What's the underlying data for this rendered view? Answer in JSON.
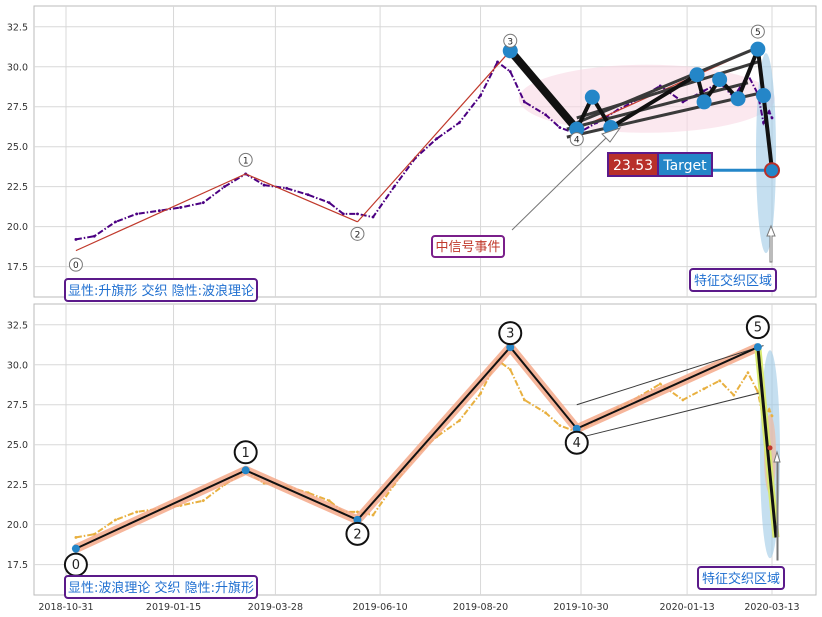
{
  "chart_data": [
    {
      "type": "line",
      "panel": "top",
      "ylim": [
        15.6,
        33.8
      ],
      "yticks": [
        "17.5",
        "20.0",
        "22.5",
        "25.0",
        "27.5",
        "30.0",
        "32.5"
      ],
      "x_dates": [
        "2018-10-31",
        "2019-01-15",
        "2019-03-28",
        "2019-06-10",
        "2019-08-20",
        "2019-10-30",
        "2020-01-13",
        "2020-03-13"
      ],
      "series": [
        {
          "style": "dash-dot",
          "color": "#4b0082",
          "points": [
            [
              "2018-11-07",
              19.2
            ],
            [
              "2018-11-20",
              19.4
            ],
            [
              "2018-12-05",
              20.3
            ],
            [
              "2018-12-20",
              20.8
            ],
            [
              "2019-01-05",
              21.0
            ],
            [
              "2019-01-20",
              21.2
            ],
            [
              "2019-02-05",
              21.5
            ],
            [
              "2019-02-20",
              22.5
            ],
            [
              "2019-03-07",
              23.3
            ],
            [
              "2019-03-20",
              22.6
            ],
            [
              "2019-04-05",
              22.4
            ],
            [
              "2019-04-20",
              22.0
            ],
            [
              "2019-05-05",
              21.5
            ],
            [
              "2019-05-15",
              20.8
            ],
            [
              "2019-05-25",
              20.8
            ],
            [
              "2019-06-05",
              20.6
            ],
            [
              "2019-06-20",
              22.5
            ],
            [
              "2019-07-05",
              24.3
            ],
            [
              "2019-07-20",
              25.5
            ],
            [
              "2019-08-05",
              26.5
            ],
            [
              "2019-08-20",
              28.2
            ],
            [
              "2019-09-01",
              30.3
            ],
            [
              "2019-09-10",
              29.7
            ],
            [
              "2019-09-20",
              27.8
            ],
            [
              "2019-10-05",
              27.0
            ],
            [
              "2019-10-15",
              26.2
            ],
            [
              "2019-10-27",
              25.8
            ],
            [
              "2019-11-10",
              26.5
            ],
            [
              "2019-11-25",
              27.3
            ],
            [
              "2019-12-10",
              28.0
            ],
            [
              "2019-12-25",
              28.8
            ],
            [
              "2020-01-10",
              27.8
            ],
            [
              "2020-01-25",
              28.5
            ],
            [
              "2020-02-05",
              29.0
            ],
            [
              "2020-02-15",
              28.1
            ],
            [
              "2020-02-25",
              29.5
            ],
            [
              "2020-03-03",
              28.3
            ],
            [
              "2020-03-07",
              26.5
            ],
            [
              "2020-03-11",
              27.2
            ],
            [
              "2020-03-13",
              26.8
            ]
          ]
        }
      ],
      "wave_points": [
        {
          "label": "0",
          "date": "2018-11-07",
          "value": 18.5
        },
        {
          "label": "1",
          "date": "2019-03-07",
          "value": 23.3
        },
        {
          "label": "2",
          "date": "2019-05-25",
          "value": 20.3
        },
        {
          "label": "3",
          "date": "2019-09-10",
          "value": 31.0
        },
        {
          "label": "4",
          "date": "2019-10-27",
          "value": 26.1
        },
        {
          "label": "5",
          "date": "2020-03-03",
          "value": 31.2
        }
      ],
      "flag_points": [
        {
          "date": "2019-09-10",
          "value": 31.0
        },
        {
          "date": "2019-10-27",
          "value": 26.1
        },
        {
          "date": "2019-11-07",
          "value": 28.1
        },
        {
          "date": "2019-11-20",
          "value": 26.2
        },
        {
          "date": "2020-01-20",
          "value": 29.5
        },
        {
          "date": "2020-01-25",
          "value": 27.8
        },
        {
          "date": "2020-02-05",
          "value": 29.2
        },
        {
          "date": "2020-02-18",
          "value": 28.0
        },
        {
          "date": "2020-03-03",
          "value": 31.1
        },
        {
          "date": "2020-03-07",
          "value": 28.2
        },
        {
          "date": "2020-03-13",
          "value": 23.53
        }
      ],
      "target_value": "23.53",
      "target_label": "Target",
      "signal_label": "中信号事件",
      "zone_label": "特征交织区域",
      "caption": "显性:升旗形 交织 隐性:波浪理论"
    },
    {
      "type": "line",
      "panel": "bottom",
      "ylim": [
        15.6,
        33.8
      ],
      "yticks": [
        "17.5",
        "20.0",
        "22.5",
        "25.0",
        "27.5",
        "30.0",
        "32.5"
      ],
      "x_dates": [
        "2018-10-31",
        "2019-01-15",
        "2019-03-28",
        "2019-06-10",
        "2019-08-20",
        "2019-10-30",
        "2020-01-13",
        "2020-03-13"
      ],
      "series": [
        {
          "style": "dash-dot",
          "color": "#e8b040",
          "points": [
            [
              "2018-11-07",
              19.2
            ],
            [
              "2018-11-20",
              19.4
            ],
            [
              "2018-12-05",
              20.3
            ],
            [
              "2018-12-20",
              20.8
            ],
            [
              "2019-01-05",
              21.0
            ],
            [
              "2019-01-20",
              21.2
            ],
            [
              "2019-02-05",
              21.5
            ],
            [
              "2019-02-20",
              22.5
            ],
            [
              "2019-03-07",
              23.3
            ],
            [
              "2019-03-20",
              22.6
            ],
            [
              "2019-04-05",
              22.4
            ],
            [
              "2019-04-20",
              22.0
            ],
            [
              "2019-05-05",
              21.5
            ],
            [
              "2019-05-15",
              20.8
            ],
            [
              "2019-05-25",
              20.8
            ],
            [
              "2019-06-05",
              20.6
            ],
            [
              "2019-06-20",
              22.5
            ],
            [
              "2019-07-05",
              24.3
            ],
            [
              "2019-07-20",
              25.5
            ],
            [
              "2019-08-05",
              26.5
            ],
            [
              "2019-08-20",
              28.2
            ],
            [
              "2019-09-01",
              30.3
            ],
            [
              "2019-09-10",
              29.7
            ],
            [
              "2019-09-20",
              27.8
            ],
            [
              "2019-10-05",
              27.0
            ],
            [
              "2019-10-15",
              26.2
            ],
            [
              "2019-10-27",
              25.8
            ],
            [
              "2019-11-10",
              26.5
            ],
            [
              "2019-11-25",
              27.3
            ],
            [
              "2019-12-10",
              28.0
            ],
            [
              "2019-12-25",
              28.8
            ],
            [
              "2020-01-10",
              27.8
            ],
            [
              "2020-01-25",
              28.5
            ],
            [
              "2020-02-05",
              29.0
            ],
            [
              "2020-02-15",
              28.1
            ],
            [
              "2020-02-25",
              29.5
            ],
            [
              "2020-03-03",
              28.3
            ],
            [
              "2020-03-07",
              26.5
            ],
            [
              "2020-03-11",
              27.2
            ],
            [
              "2020-03-13",
              26.8
            ]
          ]
        }
      ],
      "wave_points": [
        {
          "label": "0",
          "date": "2018-11-07",
          "value": 18.5
        },
        {
          "label": "1",
          "date": "2019-03-07",
          "value": 23.4
        },
        {
          "label": "2",
          "date": "2019-05-25",
          "value": 20.3
        },
        {
          "label": "3",
          "date": "2019-09-10",
          "value": 31.1
        },
        {
          "label": "4",
          "date": "2019-10-27",
          "value": 26.0
        },
        {
          "label": "5",
          "date": "2020-03-03",
          "value": 31.1
        }
      ],
      "drop_to_value": 19.2,
      "zone_label": "特征交织区域",
      "caption": "显性:波浪理论 交织 隐性:升旗形"
    }
  ]
}
